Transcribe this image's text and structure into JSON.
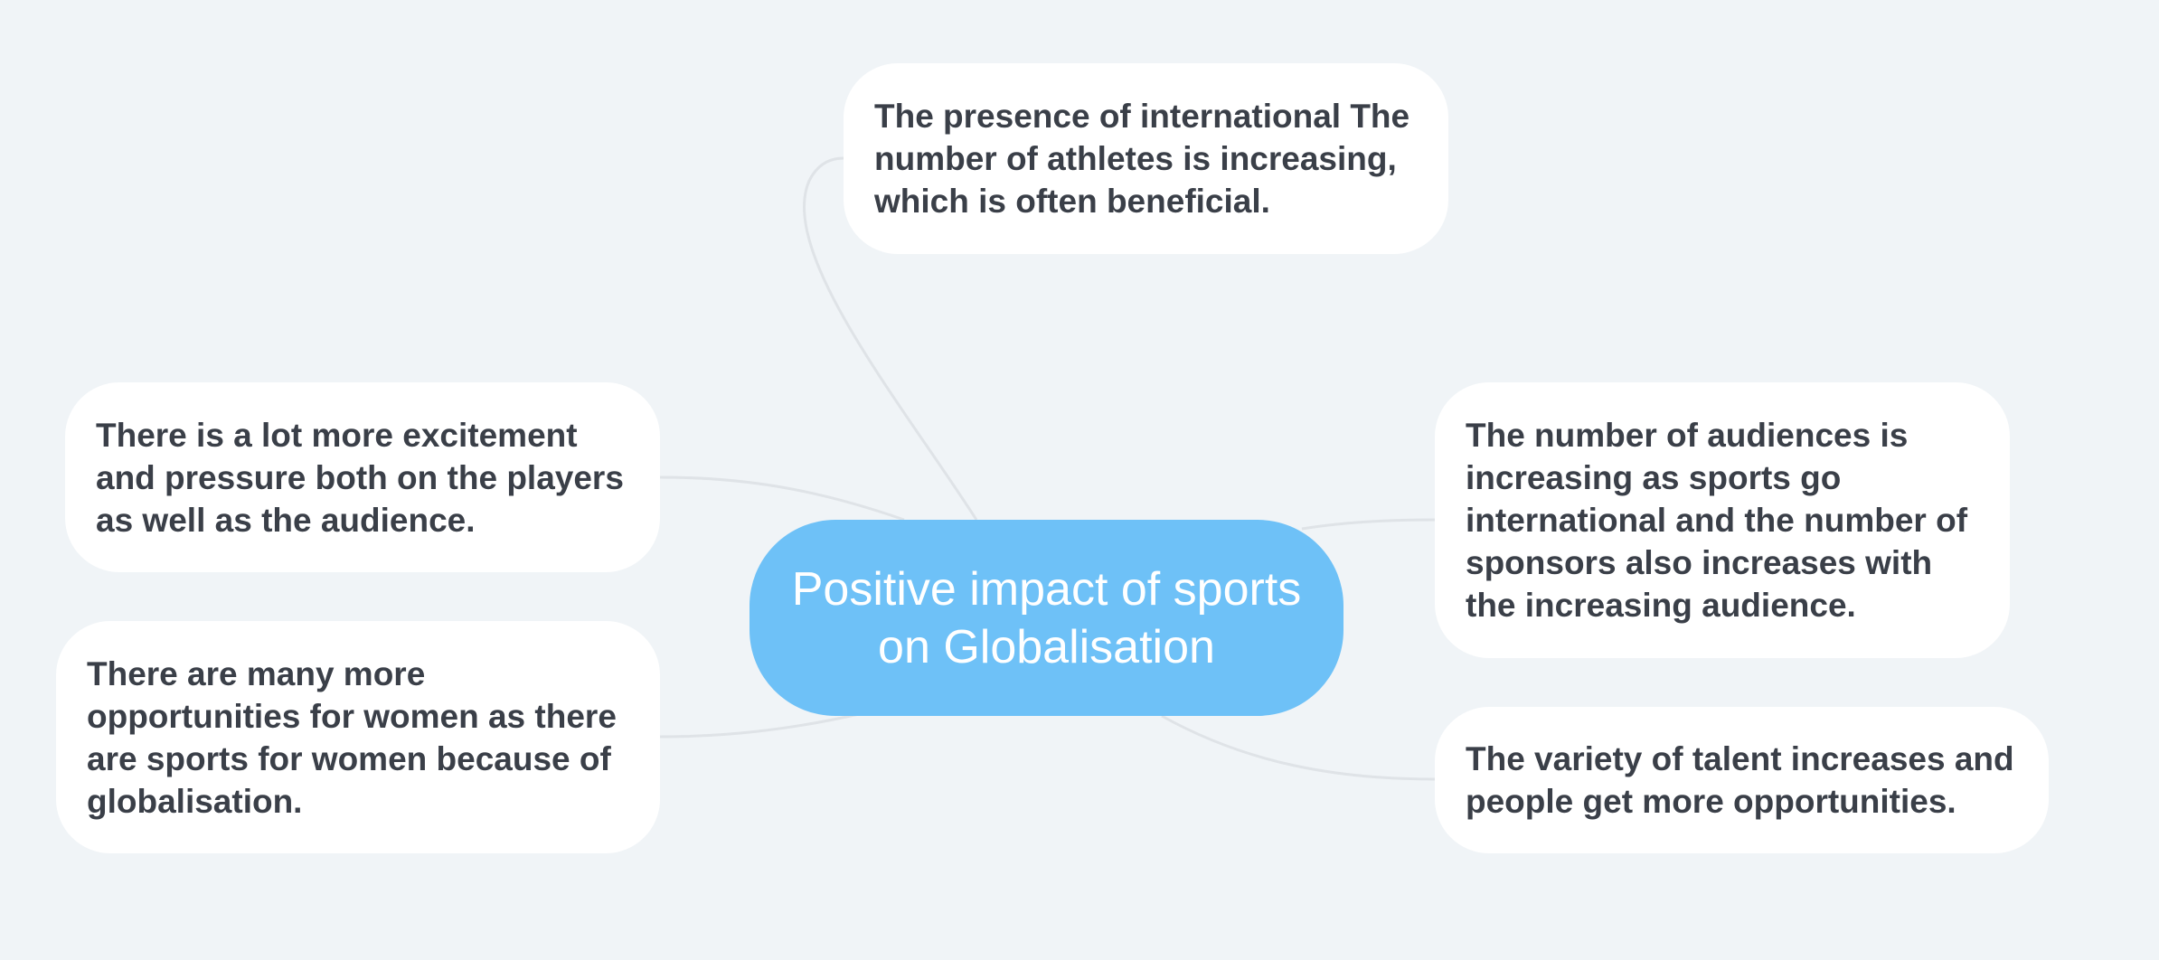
{
  "mindmap": {
    "central": {
      "text": "Positive impact of sports on Globalisation"
    },
    "branches": [
      {
        "id": "top",
        "text": "The presence of international The number of athletes is increasing, which is often beneficial."
      },
      {
        "id": "left-1",
        "text": "There is a lot more excitement and pressure both on the players as well as the audience."
      },
      {
        "id": "left-2",
        "text": "There are many more opportunities for women as there are sports for women because of globalisation."
      },
      {
        "id": "right-1",
        "text": "The number of audiences is increasing as sports go international and the number of sponsors also increases with the increasing audience."
      },
      {
        "id": "right-2",
        "text": "The variety of talent increases and people get more opportunities."
      }
    ]
  },
  "colors": {
    "background": "#f0f4f7",
    "central_fill": "#6ec1f7",
    "node_fill": "#ffffff",
    "node_text": "#3a3f48",
    "connector": "#dfe3e7"
  }
}
